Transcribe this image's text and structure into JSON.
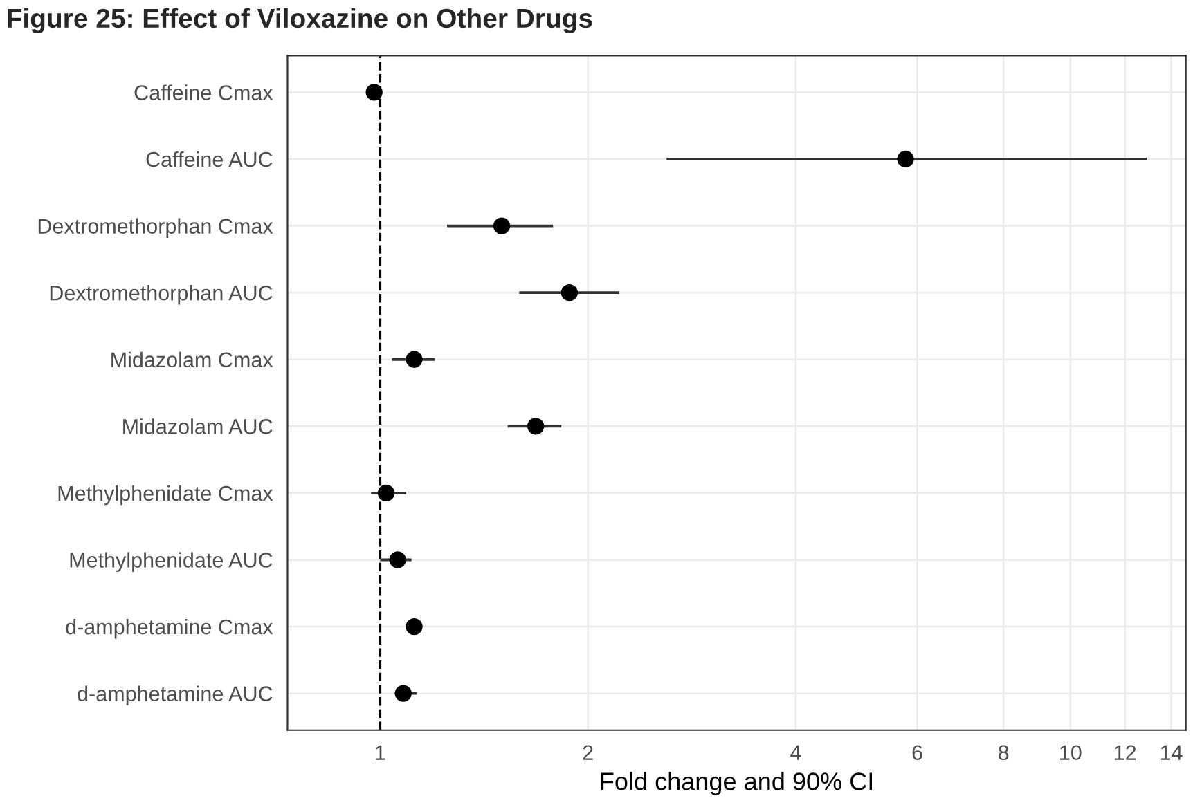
{
  "chart_data": {
    "type": "scatter",
    "orientation": "horizontal",
    "title": "Figure 25: Effect of Viloxazine on Other Drugs",
    "xlabel": "Fold change and 90% CI",
    "categories": [
      "Caffeine Cmax",
      "Caffeine AUC",
      "Dextromethorphan Cmax",
      "Dextromethorphan AUC",
      "Midazolam Cmax",
      "Midazolam AUC",
      "Methylphenidate Cmax",
      "Methylphenidate AUC",
      "d-amphetamine Cmax",
      "d-amphetamine AUC"
    ],
    "series": [
      {
        "color": "#000000",
        "values": [
          0.98,
          5.77,
          1.5,
          1.88,
          1.12,
          1.68,
          1.02,
          1.06,
          1.12,
          1.08
        ],
        "errors": [
          null,
          [
            2.6,
            12.9
          ],
          [
            1.25,
            1.78
          ],
          [
            1.59,
            2.22
          ],
          [
            1.04,
            1.2
          ],
          [
            1.53,
            1.83
          ],
          [
            0.97,
            1.09
          ],
          [
            1.0,
            1.11
          ],
          null,
          [
            1.05,
            1.13
          ]
        ]
      }
    ],
    "log": "x",
    "xlim": [
      0.734,
      14.7
    ],
    "xticks": [
      1,
      2,
      4,
      6,
      8,
      10,
      12,
      14
    ],
    "ref_lines": [
      {
        "axis": "x",
        "value": 1,
        "line_style": "dashed",
        "color": "#000000"
      }
    ],
    "grid": true,
    "marker": "circle"
  }
}
